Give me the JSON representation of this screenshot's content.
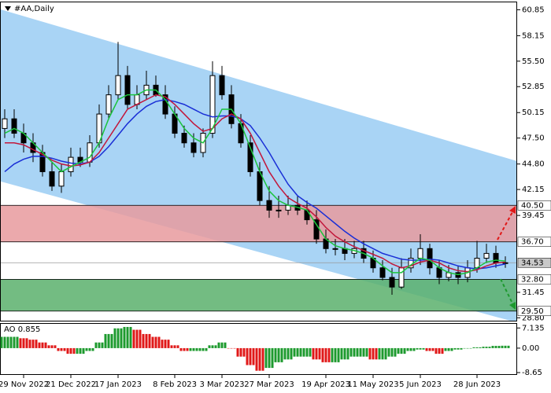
{
  "chart_data": {
    "type": "candlestick",
    "title": "#AA,Daily",
    "categories": [
      null,
      null,
      "29 Nov 2022",
      null,
      null,
      null,
      null,
      "21 Dec 2022",
      null,
      null,
      null,
      null,
      "17 Jan 2023",
      null,
      null,
      null,
      null,
      null,
      "8 Feb 2023",
      null,
      null,
      null,
      null,
      "3 Mar 2023",
      null,
      null,
      null,
      null,
      "27 Mar 2023",
      null,
      null,
      null,
      null,
      null,
      "19 Apr 2023",
      null,
      null,
      null,
      null,
      "11 May 2023",
      null,
      null,
      null,
      null,
      "5 Jun 2023",
      null,
      null,
      null,
      null,
      null,
      "28 Jun 2023",
      null,
      null,
      null
    ],
    "open": [
      48.5,
      49.5,
      48,
      47,
      46,
      44,
      42.5,
      44,
      45.5,
      45,
      47,
      50,
      52,
      54,
      51,
      52,
      53,
      52,
      50,
      48,
      47,
      46,
      48,
      54,
      52,
      49,
      47,
      44,
      41,
      40,
      40,
      40.5,
      40,
      39,
      37,
      36,
      36,
      35.5,
      36,
      35,
      34,
      33,
      32,
      34,
      35,
      36,
      34,
      33,
      33.5,
      33,
      34,
      35,
      35.5,
      34.5
    ],
    "high": [
      50.5,
      50.5,
      49,
      48,
      46.8,
      45,
      44.8,
      46.5,
      46.5,
      47.8,
      51,
      53,
      57.5,
      55,
      53,
      54.5,
      54,
      53,
      50.8,
      48.8,
      48,
      48.5,
      55.5,
      55,
      53,
      50,
      47.8,
      45,
      42.5,
      41.5,
      41.5,
      41.5,
      41,
      40,
      38,
      37,
      37,
      36.8,
      36.8,
      35.8,
      34.8,
      34,
      35,
      36,
      37.5,
      36.5,
      34.8,
      34.3,
      34.2,
      34.8,
      36.8,
      36.5,
      36.3,
      35.2
    ],
    "low": [
      47.5,
      47.5,
      46,
      45,
      43.5,
      42,
      41.8,
      43.5,
      44.5,
      44.5,
      46.5,
      49.5,
      51.5,
      50.5,
      50.5,
      51.5,
      51.8,
      49.5,
      47.5,
      46.5,
      45.5,
      45.5,
      47.5,
      51.5,
      48.5,
      46.5,
      43.5,
      40.5,
      39.2,
      39.2,
      39.5,
      39.5,
      38.5,
      36.5,
      35.5,
      35.3,
      34.8,
      35,
      34.5,
      33.5,
      32.7,
      31.2,
      31.8,
      33.5,
      34.3,
      33.3,
      32.3,
      32.6,
      32.3,
      32.5,
      33.5,
      34.5,
      34,
      34
    ],
    "close": [
      49.5,
      48,
      47,
      46,
      44,
      42.5,
      44,
      45.5,
      45,
      47,
      50,
      52,
      54,
      51,
      52,
      53,
      52,
      50,
      48,
      47,
      46,
      48,
      54,
      52,
      49,
      47,
      44,
      41,
      40,
      40,
      40.5,
      40,
      39,
      37,
      36,
      36,
      35.5,
      36,
      35,
      34,
      33,
      32,
      34,
      35,
      36,
      34,
      33,
      33.5,
      33,
      34,
      35,
      35.5,
      34.5,
      34.53
    ],
    "series": [
      {
        "color": "#1a2fd6",
        "values": [
          44,
          44.8,
          45.3,
          45.6,
          45.6,
          45.4,
          45.1,
          44.9,
          44.8,
          45,
          45.6,
          46.6,
          47.8,
          49,
          50,
          50.8,
          51.3,
          51.5,
          51.3,
          51,
          50.5,
          50,
          49.7,
          49.8,
          49.8,
          49.5,
          48.8,
          47.5,
          46,
          44.3,
          42.7,
          41.5,
          40.8,
          40.2,
          39.4,
          38.6,
          37.8,
          37.1,
          36.5,
          36,
          35.5,
          35.2,
          34.9,
          34.8,
          34.8,
          34.9,
          34.8,
          34.5,
          34.2,
          34,
          33.9,
          34,
          34.2,
          34.4
        ]
      },
      {
        "color": "#c2173b",
        "values": [
          47,
          47,
          46.8,
          46.3,
          45.8,
          45.2,
          44.8,
          44.6,
          44.7,
          45,
          46,
          47.5,
          49,
          50.5,
          51,
          51.5,
          52,
          51.8,
          51,
          50,
          49,
          48.2,
          48.5,
          49.5,
          50,
          49.5,
          48,
          46,
          44,
          42.5,
          41.3,
          40.7,
          40.2,
          39.3,
          38.2,
          37.3,
          36.7,
          36.2,
          35.8,
          35.4,
          35,
          34.4,
          34,
          34.2,
          34.6,
          34.8,
          34.5,
          34,
          33.7,
          33.6,
          33.8,
          34.2,
          34.5,
          34.6
        ]
      },
      {
        "color": "#1bc43c",
        "values": [
          48,
          48.5,
          48,
          47,
          46,
          45,
          44,
          44.5,
          45,
          45.5,
          47,
          49.5,
          51.5,
          52,
          52,
          52.5,
          52.5,
          51.5,
          50,
          48.5,
          47.5,
          47,
          48.5,
          50.5,
          50.5,
          49,
          46.5,
          44,
          42,
          41,
          40.5,
          40.3,
          40,
          38.5,
          37,
          36.3,
          36,
          35.8,
          35.5,
          35,
          34.2,
          33.5,
          33.5,
          34.3,
          35,
          34.8,
          34,
          33.5,
          33.3,
          33.5,
          34,
          34.6,
          34.8,
          34.7
        ]
      }
    ],
    "channel": {
      "color": "#a9d4f5",
      "upper": [
        60.9,
        45.1
      ],
      "lower": [
        43.0,
        28.3
      ]
    },
    "zones": [
      {
        "color": "#e89a9e",
        "low": {
          "value": 36.7,
          "label": "36.70"
        },
        "high": {
          "value": 40.5,
          "label": "40.50"
        }
      },
      {
        "color": "#5bb06c",
        "low": {
          "value": 29.5,
          "label": "29.50"
        },
        "high": {
          "value": 32.8,
          "label": "32.80"
        }
      }
    ],
    "current": {
      "value": 34.53,
      "label": "34.53"
    },
    "ylim": [
      28.5,
      61.7
    ],
    "yticks": [
      60.85,
      58.15,
      {
        "value": 55.5,
        "label": "55.50"
      },
      52.85,
      50.15,
      {
        "value": 47.5,
        "label": "47.50"
      },
      {
        "value": 44.8,
        "label": "44.80"
      },
      42.15,
      39.45,
      31.45,
      {
        "value": 28.8,
        "label": "28.80"
      }
    ],
    "ao": {
      "title": "AO 0.855",
      "values": [
        4,
        4,
        3.5,
        3,
        2,
        1,
        -1,
        -2,
        -2,
        -1,
        2,
        5,
        7,
        7.5,
        6.5,
        5,
        4,
        3,
        1,
        -1,
        -1,
        -1,
        1,
        2,
        0,
        -3,
        -6,
        -8,
        -7,
        -5,
        -4,
        -3,
        -3,
        -4,
        -5,
        -5,
        -4,
        -3,
        -3,
        -4,
        -4,
        -3,
        -2,
        -1,
        -0.5,
        -1,
        -2,
        -1,
        -0.5,
        0,
        0.3,
        0.5,
        0.8,
        0.855
      ],
      "up_color": "#1d9a2e",
      "down_color": "#e01818",
      "ylim": [
        -9.2,
        8.6
      ],
      "yticks": [
        7.135,
        {
          "value": 0,
          "label": "0.00"
        },
        -8.65
      ]
    }
  }
}
